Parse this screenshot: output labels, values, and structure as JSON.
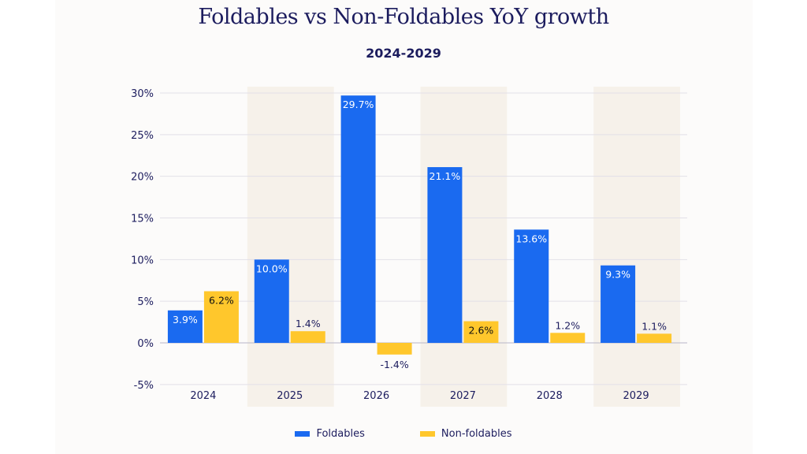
{
  "chart_data": {
    "type": "bar",
    "title": "Foldables vs Non-Foldables YoY growth",
    "subtitle": "2024-2029",
    "categories": [
      "2024",
      "2025",
      "2026",
      "2027",
      "2028",
      "2029"
    ],
    "series": [
      {
        "name": "Foldables",
        "color": "#1a6af0",
        "values": [
          3.9,
          10.0,
          29.7,
          21.1,
          13.6,
          9.3
        ],
        "labels": [
          "3.9%",
          "10.0%",
          "29.7%",
          "21.1%",
          "13.6%",
          "9.3%"
        ]
      },
      {
        "name": "Non-foldables",
        "color": "#ffc72c",
        "values": [
          6.2,
          1.4,
          -1.4,
          2.6,
          1.2,
          1.1
        ],
        "labels": [
          "6.2%",
          "1.4%",
          "-1.4%",
          "2.6%",
          "1.2%",
          "1.1%"
        ]
      }
    ],
    "yticks": [
      "30%",
      "25%",
      "20%",
      "15%",
      "10%",
      "5%",
      "0%",
      "-5%"
    ],
    "ytick_values": [
      30,
      25,
      20,
      15,
      10,
      5,
      0,
      -5
    ],
    "ylim": [
      -5,
      30
    ],
    "grid": true,
    "legend": "bottom",
    "band_color": "#f6f1ea"
  }
}
